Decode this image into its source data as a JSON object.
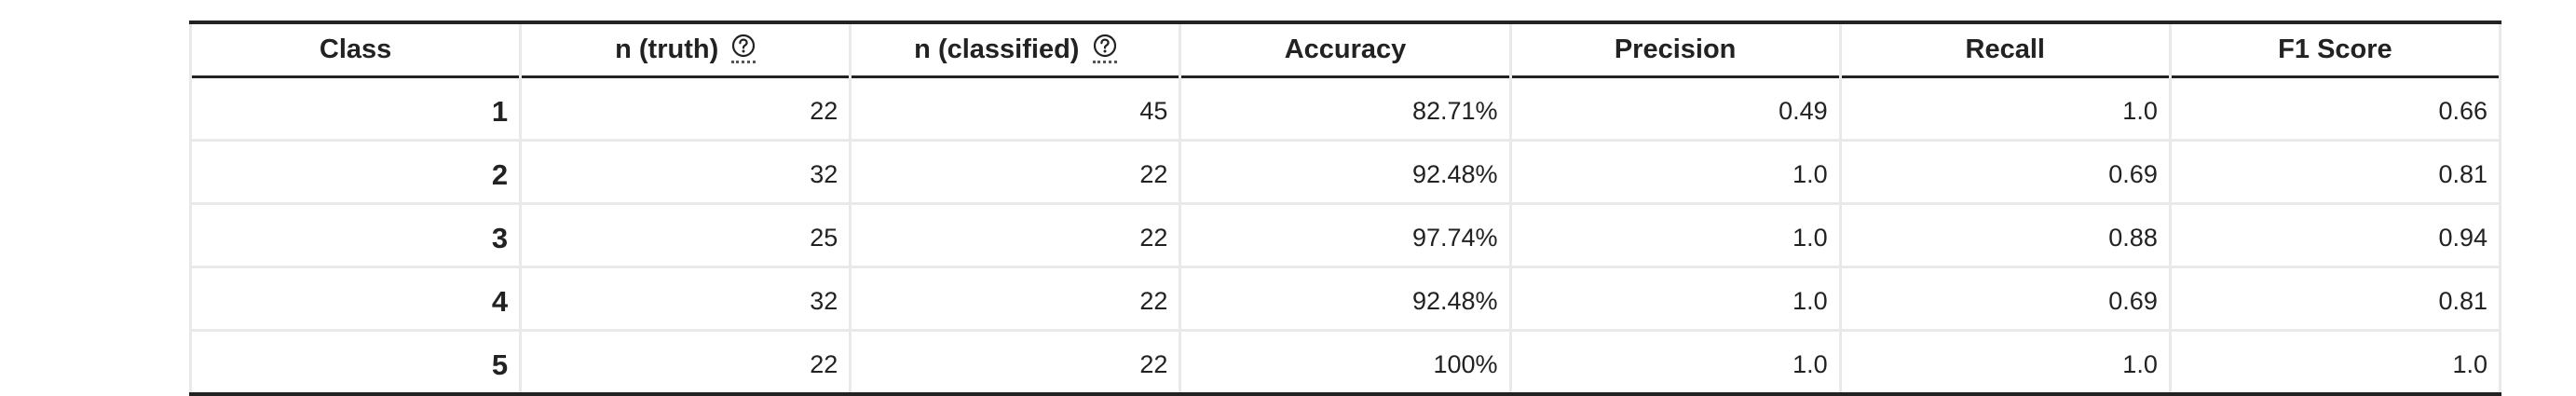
{
  "table": {
    "headers": [
      {
        "label": "Class",
        "has_help": false
      },
      {
        "label": "n (truth)",
        "has_help": true
      },
      {
        "label": "n (classified)",
        "has_help": true
      },
      {
        "label": "Accuracy",
        "has_help": false
      },
      {
        "label": "Precision",
        "has_help": false
      },
      {
        "label": "Recall",
        "has_help": false
      },
      {
        "label": "F1 Score",
        "has_help": false
      }
    ],
    "help_icon": "question-circle-icon",
    "rows": [
      {
        "class": "1",
        "n_truth": "22",
        "n_classified": "45",
        "accuracy": "82.71%",
        "precision": "0.49",
        "recall": "1.0",
        "f1": "0.66"
      },
      {
        "class": "2",
        "n_truth": "32",
        "n_classified": "22",
        "accuracy": "92.48%",
        "precision": "1.0",
        "recall": "0.69",
        "f1": "0.81"
      },
      {
        "class": "3",
        "n_truth": "25",
        "n_classified": "22",
        "accuracy": "97.74%",
        "precision": "1.0",
        "recall": "0.88",
        "f1": "0.94"
      },
      {
        "class": "4",
        "n_truth": "32",
        "n_classified": "22",
        "accuracy": "92.48%",
        "precision": "1.0",
        "recall": "0.69",
        "f1": "0.81"
      },
      {
        "class": "5",
        "n_truth": "22",
        "n_classified": "22",
        "accuracy": "100%",
        "precision": "1.0",
        "recall": "1.0",
        "f1": "1.0"
      }
    ]
  },
  "colors": {
    "text": "#222222",
    "rule": "#222222",
    "grid": "#e9e9e9"
  }
}
